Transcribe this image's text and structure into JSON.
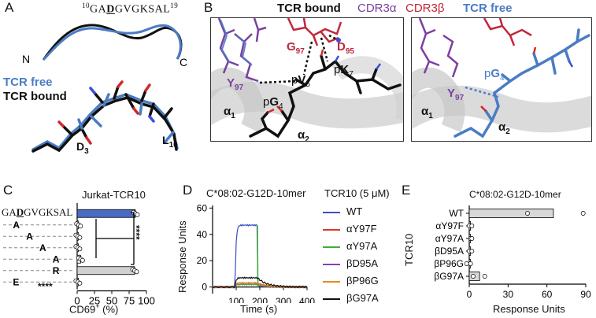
{
  "panels": {
    "A": {
      "label": "A",
      "sequence_sup_start": "10",
      "sequence_pre": "GA",
      "sequence_mut": "D",
      "sequence_post": "GVGKSAL",
      "sequence_sup_end": "19",
      "n_term": "N",
      "c_term": "C",
      "legend_free": "TCR free",
      "legend_bound": "TCR bound",
      "res_d3": "D",
      "res_d3_sub": "3",
      "res_l10": "L",
      "res_l10_sub": "10",
      "colors": {
        "free": "#4a7cc4",
        "bound": "#111111"
      }
    },
    "B": {
      "label": "B",
      "title_bound": "TCR bound",
      "title_cdr3a": "CDR3α",
      "title_cdr3b": "CDR3β",
      "title_free": "TCR free",
      "colors": {
        "cdr3a": "#7b3fa0",
        "cdr3b": "#c0283a",
        "free": "#4a7cc4",
        "bound": "#111111",
        "helix": "#c9c9c9"
      },
      "left": {
        "g97": "G",
        "g97_sub": "97",
        "d95": "D",
        "d95_sub": "95",
        "k7_pre": "p",
        "k7": "K",
        "k7_sub": "7",
        "y97": "Y",
        "y97_sub": "97",
        "v5_pre": "p",
        "v5": "V",
        "v5_sub": "5",
        "g4_pre": "p",
        "g4": "G",
        "g4_sub": "4",
        "a1": "α",
        "a1_sub": "1",
        "a2": "α",
        "a2_sub": "2"
      },
      "right": {
        "g4_pre": "p",
        "g4": "G",
        "g4_sub": "4",
        "y97": "Y",
        "y97_sub": "97",
        "a1": "α",
        "a1_sub": "1",
        "a2": "α",
        "a2_sub": "2"
      }
    },
    "C": {
      "label": "C",
      "title": "Jurkat-TCR10",
      "xlabel_pre": "CD69",
      "xlabel_sup": "+",
      "xlabel_post": " (%)",
      "xticks": [
        "0",
        "25",
        "50",
        "75",
        "100"
      ],
      "sig_top": "****",
      "sig_bottom": "****",
      "chart_data": {
        "type": "bar",
        "categories": [
          "GADGVGKSAL",
          "A",
          "A",
          "A",
          "A",
          "R",
          "E"
        ],
        "values": [
          84,
          2,
          1,
          1,
          5,
          83,
          1
        ],
        "xlim": [
          0,
          100
        ],
        "colors": [
          "#4a6cc4",
          "#ffffff",
          "#ffffff",
          "#ffffff",
          "#ffffff",
          "#d0d0d0",
          "#ffffff"
        ]
      },
      "seq_first": "GA",
      "seq_first_mut": "D",
      "seq_first_rest": "GVGKSAL"
    },
    "D": {
      "label": "D",
      "title": "C*08:02-G12D-10mer",
      "conc": "TCR10 (5 μM)",
      "ylabel": "Response Units",
      "xlabel": "Time (s)",
      "yticks": [
        "0",
        "20",
        "40",
        "60"
      ],
      "xticks": [
        "100",
        "200",
        "300",
        "400"
      ],
      "chart_data": {
        "type": "line",
        "xlim": [
          0,
          400
        ],
        "ylim": [
          -5,
          62
        ],
        "series": [
          {
            "name": "WT",
            "color": "#3a4fc0",
            "plateau": 47
          },
          {
            "name": "αY97F",
            "color": "#d93a2a",
            "plateau": 2
          },
          {
            "name": "αY97A",
            "color": "#3fae3a",
            "plateau": 2
          },
          {
            "name": "βD95A",
            "color": "#8a3fb0",
            "plateau": 3
          },
          {
            "name": "βP96G",
            "color": "#e88a1a",
            "plateau": 3
          },
          {
            "name": "βG97A",
            "color": "#111111",
            "plateau": 7
          }
        ]
      }
    },
    "E": {
      "label": "E",
      "title": "C*08:02-G12D-10mer",
      "ylabel": "TCR10",
      "xlabel": "Response Units",
      "xticks": [
        "0",
        "30",
        "60",
        "90"
      ],
      "chart_data": {
        "type": "bar",
        "categories": [
          "WT",
          "αY97F",
          "αY97A",
          "βD95A",
          "βP96G",
          "βG97A"
        ],
        "values": [
          65,
          1,
          1,
          1,
          0,
          8
        ],
        "xlim": [
          0,
          90
        ]
      }
    }
  }
}
